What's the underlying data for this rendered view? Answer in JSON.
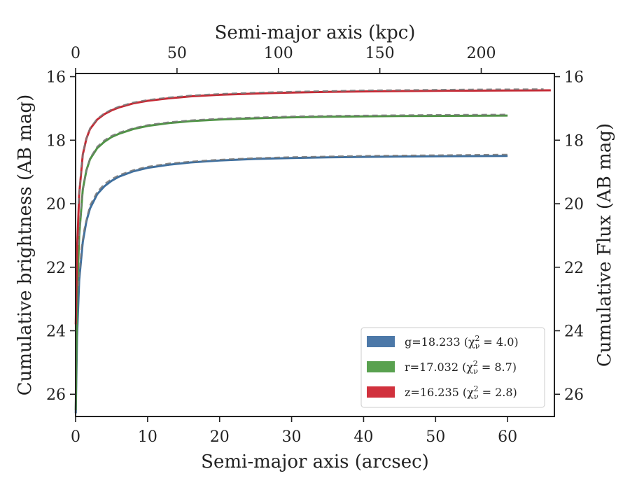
{
  "chart_data": {
    "type": "line",
    "xlabel": "Semi-major axis (arcsec)",
    "x2label": "Semi-major axis (kpc)",
    "ylabel": "Cumulative brightness (AB mag)",
    "y2label": "Cumulative Flux (AB mag)",
    "xlim": [
      0,
      66.5
    ],
    "ylim": [
      26.7,
      15.9
    ],
    "y_inverted": true,
    "x_ticks": [
      0,
      10,
      20,
      30,
      40,
      50,
      60
    ],
    "x2_ticks": [
      0,
      50,
      100,
      150,
      200
    ],
    "x2_kpc_per_arcsec": 3.55,
    "y_ticks": [
      16,
      18,
      20,
      22,
      24,
      26
    ],
    "grid": false,
    "legend": {
      "placement": "lower-right",
      "entries": [
        {
          "label": "g=18.233 (χ",
          "sub": "ν",
          "sup": "2",
          "tail": " = 4.0)",
          "color": "#4c78a8"
        },
        {
          "label": "r=17.032 (χ",
          "sub": "ν",
          "sup": "2",
          "tail": " = 8.7)",
          "color": "#59a14f"
        },
        {
          "label": "z=16.235 (χ",
          "sub": "ν",
          "sup": "2",
          "tail": " = 2.8)",
          "color": "#d1313d"
        }
      ]
    },
    "series": [
      {
        "name": "g",
        "color": "#3f6f9e",
        "x": [
          0.02,
          0.2,
          0.5,
          1,
          1.5,
          2,
          3,
          4,
          5,
          6,
          8,
          10,
          13,
          16,
          20,
          25,
          30,
          35,
          40,
          45,
          50,
          55,
          60
        ],
        "y": [
          26.6,
          24.2,
          22.4,
          21.2,
          20.55,
          20.15,
          19.7,
          19.45,
          19.28,
          19.15,
          18.98,
          18.87,
          18.77,
          18.7,
          18.64,
          18.59,
          18.56,
          18.54,
          18.525,
          18.515,
          18.505,
          18.5,
          18.495
        ]
      },
      {
        "name": "r",
        "color": "#4f9445",
        "x": [
          0.02,
          0.2,
          0.5,
          1,
          1.5,
          2,
          3,
          4,
          5,
          6,
          8,
          10,
          13,
          16,
          20,
          25,
          30,
          35,
          40,
          45,
          50,
          55,
          60
        ],
        "y": [
          26.5,
          23.0,
          21.0,
          19.55,
          18.95,
          18.6,
          18.25,
          18.05,
          17.9,
          17.8,
          17.65,
          17.55,
          17.46,
          17.4,
          17.35,
          17.31,
          17.28,
          17.26,
          17.25,
          17.24,
          17.235,
          17.23,
          17.225
        ]
      },
      {
        "name": "z",
        "color": "#c52a35",
        "x": [
          0.02,
          0.2,
          0.5,
          1,
          1.5,
          2,
          3,
          4,
          5,
          6,
          8,
          10,
          13,
          16,
          20,
          25,
          30,
          35,
          40,
          45,
          50,
          55,
          60,
          66
        ],
        "y": [
          23.8,
          21.5,
          19.7,
          18.45,
          17.95,
          17.65,
          17.35,
          17.18,
          17.06,
          16.97,
          16.84,
          16.76,
          16.68,
          16.62,
          16.57,
          16.53,
          16.5,
          16.48,
          16.465,
          16.455,
          16.445,
          16.44,
          16.435,
          16.43
        ]
      }
    ],
    "model": [
      {
        "name": "g-model",
        "color": "#7a7a7a",
        "x": [
          0.4,
          0.8,
          1.2,
          1.6,
          2,
          3,
          4,
          5,
          6,
          8,
          10,
          13,
          16,
          20,
          25,
          30,
          35,
          40,
          45,
          50,
          55,
          60
        ],
        "y": [
          22.6,
          21.4,
          20.8,
          20.4,
          20.05,
          19.62,
          19.38,
          19.22,
          19.1,
          18.94,
          18.83,
          18.73,
          18.67,
          18.61,
          18.56,
          18.53,
          18.51,
          18.49,
          18.48,
          18.47,
          18.46,
          18.45
        ]
      },
      {
        "name": "r-model",
        "color": "#7a7a7a",
        "x": [
          0.4,
          0.8,
          1.2,
          1.6,
          2,
          3,
          4,
          5,
          6,
          8,
          10,
          13,
          16,
          20,
          25,
          30,
          35,
          40,
          45,
          50,
          55,
          60
        ],
        "y": [
          21.3,
          20.0,
          19.3,
          18.9,
          18.56,
          18.2,
          18.0,
          17.86,
          17.76,
          17.62,
          17.52,
          17.43,
          17.37,
          17.32,
          17.28,
          17.25,
          17.23,
          17.22,
          17.21,
          17.2,
          17.195,
          17.19
        ]
      },
      {
        "name": "z-model",
        "color": "#7a7a7a",
        "x": [
          0.4,
          0.8,
          1.2,
          1.6,
          2,
          3,
          4,
          5,
          6,
          8,
          10,
          13,
          16,
          20,
          25,
          30,
          35,
          40,
          45,
          50,
          55,
          60,
          65
        ],
        "y": [
          20.0,
          18.8,
          18.2,
          17.88,
          17.62,
          17.32,
          17.15,
          17.03,
          16.94,
          16.81,
          16.73,
          16.65,
          16.59,
          16.54,
          16.5,
          16.47,
          16.45,
          16.43,
          16.42,
          16.41,
          16.4,
          16.395,
          16.39
        ]
      }
    ]
  }
}
